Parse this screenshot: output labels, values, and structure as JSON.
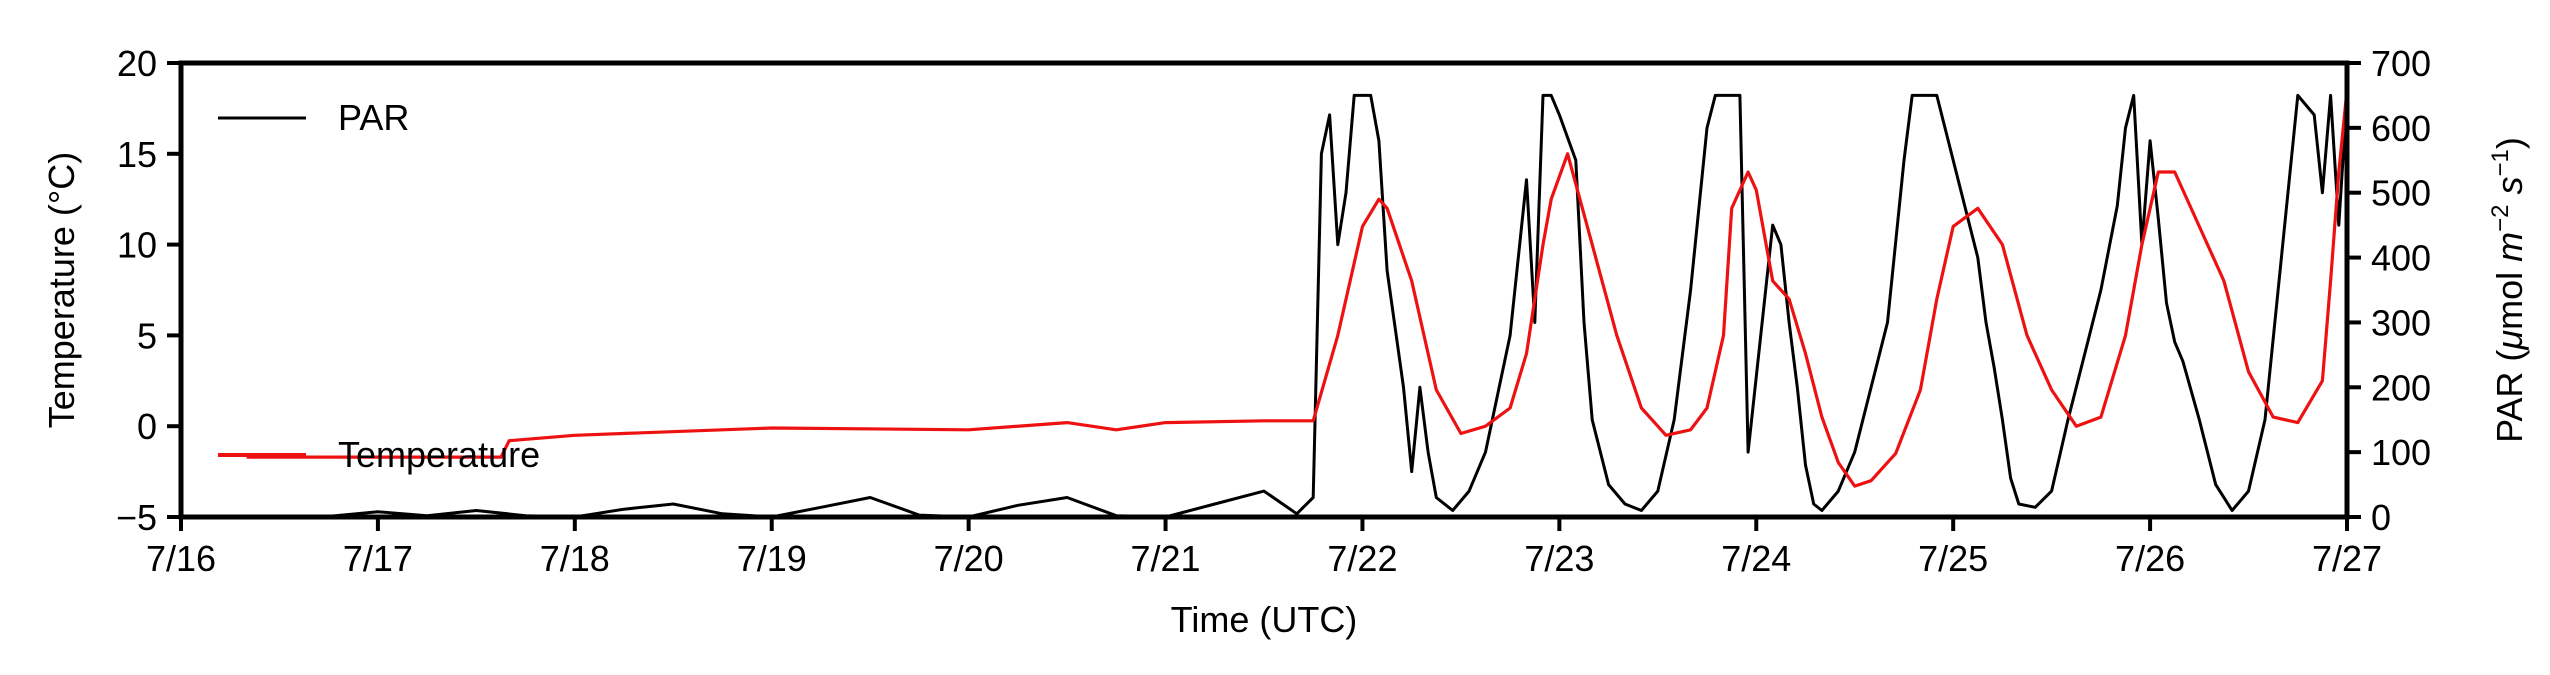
{
  "chart_data": {
    "type": "line",
    "xlabel": "Time (UTC)",
    "ylabel_left": "Temperature (°C)",
    "ylabel_right_parts": [
      "PAR (",
      "μ",
      "mol ",
      "m",
      "−2",
      " ",
      "s",
      "−1",
      ")"
    ],
    "x_ticks": [
      "7/16",
      "7/17",
      "7/18",
      "7/19",
      "7/20",
      "7/21",
      "7/22",
      "7/23",
      "7/24",
      "7/25",
      "7/26",
      "7/27"
    ],
    "x_range_days": [
      16,
      27
    ],
    "y_left": {
      "ticks": [
        "−5",
        "0",
        "5",
        "10",
        "15",
        "20"
      ],
      "tick_values": [
        -5,
        0,
        5,
        10,
        15,
        20
      ],
      "range": [
        -5,
        20
      ]
    },
    "y_right": {
      "ticks": [
        "0",
        "100",
        "200",
        "300",
        "400",
        "500",
        "600",
        "700"
      ],
      "tick_values": [
        0,
        100,
        200,
        300,
        400,
        500,
        600,
        700
      ],
      "range": [
        0,
        700
      ]
    },
    "legend": {
      "placement": "left"
    },
    "colors": {
      "PAR": "#000000",
      "Temperature": "#ee1111"
    },
    "series": [
      {
        "name": "PAR",
        "axis": "right",
        "x": [
          "7/16 08:00",
          "7/16 18:00",
          "7/17 00:00",
          "7/17 06:00",
          "7/17 12:00",
          "7/17 18:00",
          "7/18 00:00",
          "7/18 06:00",
          "7/18 12:00",
          "7/18 18:00",
          "7/19 00:00",
          "7/19 06:00",
          "7/19 12:00",
          "7/19 18:00",
          "7/20 00:00",
          "7/20 06:00",
          "7/20 12:00",
          "7/20 18:00",
          "7/21 00:00",
          "7/21 06:00",
          "7/21 12:00",
          "7/21 16:00",
          "7/21 18:00",
          "7/21 19:00",
          "7/21 20:00",
          "7/21 21:00",
          "7/21 22:00",
          "7/21 23:00",
          "7/22 01:00",
          "7/22 02:00",
          "7/22 03:00",
          "7/22 05:00",
          "7/22 06:00",
          "7/22 07:00",
          "7/22 08:00",
          "7/22 09:00",
          "7/22 11:00",
          "7/22 13:00",
          "7/22 15:00",
          "7/22 18:00",
          "7/22 20:00",
          "7/22 21:00",
          "7/22 22:00",
          "7/22 23:00",
          "7/23 00:00",
          "7/23 02:00",
          "7/23 03:00",
          "7/23 04:00",
          "7/23 06:00",
          "7/23 08:00",
          "7/23 10:00",
          "7/23 12:00",
          "7/23 14:00",
          "7/23 16:00",
          "7/23 18:00",
          "7/23 19:00",
          "7/23 20:00",
          "7/23 21:00",
          "7/23 22:00",
          "7/23 23:00",
          "7/24 02:00",
          "7/24 03:00",
          "7/24 04:00",
          "7/24 05:00",
          "7/24 06:00",
          "7/24 07:00",
          "7/24 08:00",
          "7/24 10:00",
          "7/24 12:00",
          "7/24 14:00",
          "7/24 16:00",
          "7/24 18:00",
          "7/24 19:00",
          "7/24 20:00",
          "7/24 21:00",
          "7/24 22:00",
          "7/24 23:00",
          "7/25 03:00",
          "7/25 04:00",
          "7/25 05:00",
          "7/25 06:00",
          "7/25 07:00",
          "7/25 08:00",
          "7/25 10:00",
          "7/25 12:00",
          "7/25 14:00",
          "7/25 16:00",
          "7/25 18:00",
          "7/25 20:00",
          "7/25 21:00",
          "7/25 22:00",
          "7/25 23:00",
          "7/26 00:00",
          "7/26 01:00",
          "7/26 02:00",
          "7/26 03:00",
          "7/26 04:00",
          "7/26 06:00",
          "7/26 08:00",
          "7/26 10:00",
          "7/26 12:00",
          "7/26 14:00",
          "7/26 16:00",
          "7/26 18:00",
          "7/26 20:00",
          "7/26 21:00",
          "7/26 22:00",
          "7/26 23:00",
          "7/27 00:00"
        ],
        "values": [
          0,
          1,
          8,
          2,
          10,
          2,
          0,
          12,
          20,
          5,
          0,
          15,
          30,
          3,
          0,
          18,
          30,
          2,
          0,
          20,
          40,
          5,
          30,
          560,
          620,
          420,
          500,
          650,
          650,
          580,
          380,
          200,
          70,
          200,
          100,
          30,
          10,
          40,
          100,
          280,
          520,
          300,
          650,
          650,
          620,
          550,
          300,
          150,
          50,
          20,
          10,
          40,
          150,
          350,
          600,
          650,
          650,
          650,
          650,
          100,
          450,
          420,
          300,
          200,
          80,
          20,
          10,
          40,
          100,
          200,
          300,
          550,
          650,
          650,
          650,
          650,
          600,
          400,
          300,
          230,
          150,
          60,
          20,
          15,
          40,
          150,
          250,
          350,
          480,
          600,
          650,
          420,
          580,
          460,
          330,
          270,
          240,
          150,
          50,
          10,
          40,
          150,
          400,
          650,
          620,
          500,
          650,
          450,
          650
        ]
      },
      {
        "name": "Temperature",
        "axis": "left",
        "x": [
          "7/16 08:00",
          "7/17 12:00",
          "7/17 15:00",
          "7/17 16:00",
          "7/18 00:00",
          "7/19 00:00",
          "7/20 00:00",
          "7/20 12:00",
          "7/20 18:00",
          "7/21 00:00",
          "7/21 12:00",
          "7/21 18:00",
          "7/21 21:00",
          "7/22 00:00",
          "7/22 02:00",
          "7/22 03:00",
          "7/22 06:00",
          "7/22 09:00",
          "7/22 12:00",
          "7/22 15:00",
          "7/22 18:00",
          "7/22 20:00",
          "7/22 22:00",
          "7/22 23:00",
          "7/23 01:00",
          "7/23 04:00",
          "7/23 07:00",
          "7/23 10:00",
          "7/23 13:00",
          "7/23 16:00",
          "7/23 18:00",
          "7/23 20:00",
          "7/23 21:00",
          "7/23 22:00",
          "7/23 23:00",
          "7/24 00:00",
          "7/24 02:00",
          "7/24 04:00",
          "7/24 06:00",
          "7/24 08:00",
          "7/24 10:00",
          "7/24 12:00",
          "7/24 14:00",
          "7/24 17:00",
          "7/24 20:00",
          "7/24 22:00",
          "7/25 00:00",
          "7/25 03:00",
          "7/25 06:00",
          "7/25 09:00",
          "7/25 12:00",
          "7/25 15:00",
          "7/25 18:00",
          "7/25 21:00",
          "7/25 23:00",
          "7/26 01:00",
          "7/26 03:00",
          "7/26 06:00",
          "7/26 09:00",
          "7/26 12:00",
          "7/26 15:00",
          "7/26 18:00",
          "7/26 21:00",
          "7/26 22:00",
          "7/26 23:00",
          "7/27 00:00"
        ],
        "values": [
          -1.7,
          -1.7,
          -1.7,
          -0.8,
          -0.5,
          -0.1,
          -0.2,
          0.2,
          -0.2,
          0.2,
          0.3,
          0.3,
          5.0,
          11.0,
          12.5,
          12.0,
          8.0,
          2.0,
          -0.4,
          0.0,
          1.0,
          4.0,
          10.0,
          12.5,
          15.0,
          10.0,
          5.0,
          1.0,
          -0.5,
          -0.2,
          1.0,
          5.0,
          12.0,
          13.0,
          14.0,
          13.0,
          8.0,
          7.0,
          4.0,
          0.5,
          -2.0,
          -3.3,
          -3.0,
          -1.5,
          2.0,
          7.0,
          11.0,
          12.0,
          10.0,
          5.0,
          2.0,
          0.0,
          0.5,
          5.0,
          10.0,
          14.0,
          14.0,
          11.0,
          8.0,
          3.0,
          0.5,
          0.2,
          2.5,
          8.0,
          14.0,
          18.5
        ]
      }
    ]
  }
}
